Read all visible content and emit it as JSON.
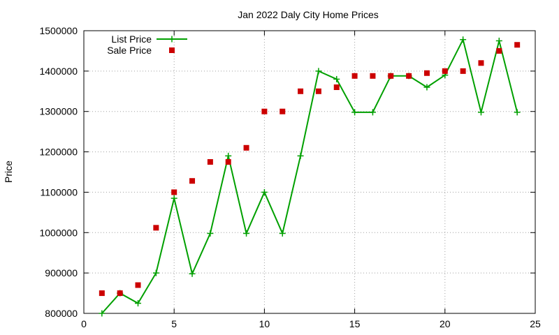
{
  "chart_data": {
    "type": "line",
    "title": "Jan 2022 Daly City Home Prices",
    "xlabel": "",
    "ylabel": "Price",
    "xlim": [
      0,
      25
    ],
    "ylim": [
      800000,
      1500000
    ],
    "x_ticks": [
      0,
      5,
      10,
      15,
      20,
      25
    ],
    "y_ticks": [
      800000,
      900000,
      1000000,
      1100000,
      1200000,
      1300000,
      1400000,
      1500000
    ],
    "grid": true,
    "legend_position": "top-left",
    "series": [
      {
        "name": "List Price",
        "style": "line+cross",
        "color": "#00a000",
        "x": [
          1,
          2,
          3,
          4,
          5,
          6,
          7,
          8,
          9,
          10,
          11,
          12,
          13,
          14,
          15,
          16,
          17,
          18,
          19,
          20,
          21,
          22,
          23,
          24
        ],
        "y": [
          800000,
          850000,
          825000,
          900000,
          1085000,
          898000,
          998000,
          1190000,
          998000,
          1100000,
          998000,
          1190000,
          1400000,
          1380000,
          1298000,
          1298000,
          1388000,
          1388000,
          1360000,
          1390000,
          1478000,
          1298000,
          1475000,
          1298000
        ]
      },
      {
        "name": "Sale Price",
        "style": "square-marker",
        "color": "#cc0000",
        "x": [
          1,
          2,
          3,
          4,
          5,
          6,
          7,
          8,
          9,
          10,
          11,
          12,
          13,
          14,
          15,
          16,
          17,
          18,
          19,
          20,
          21,
          22,
          23,
          24
        ],
        "y": [
          850000,
          850000,
          870000,
          1012000,
          1100000,
          1128000,
          1175000,
          1175000,
          1210000,
          1300000,
          1300000,
          1350000,
          1350000,
          1360000,
          1388000,
          1388000,
          1388000,
          1388000,
          1395000,
          1400000,
          1400000,
          1420000,
          1450000,
          1465000
        ]
      }
    ]
  }
}
